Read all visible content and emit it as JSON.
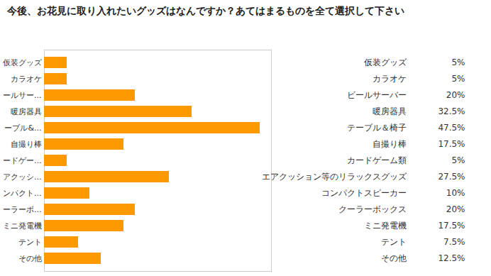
{
  "chart_data": {
    "type": "bar",
    "title": "今後、お花見に取り入れたいグッズはなんですか？あてはまるものを全て選択して下さい",
    "orientation": "horizontal",
    "categories": [
      "仮装グッズ",
      "カラオケ",
      "ビールサーバー",
      "暖房器具",
      "テーブル＆椅子",
      "自撮り棒",
      "カードゲーム類",
      "エアクッション等のリラックスグッズ",
      "コンパクトスピーカー",
      "クーラーボックス",
      "ミニ発電機",
      "テント",
      "その他"
    ],
    "y_tick_labels": [
      "仮装グッズ",
      "カラオケ",
      "ールサー...",
      "暖房器具",
      "ーブル&...",
      "自撮り棒",
      "ードゲー...",
      "アクッシ...",
      "ンパクト...",
      "ーラーボ...",
      "ミニ発電機",
      "テント",
      "その他"
    ],
    "values": [
      5,
      5,
      20,
      32.5,
      47.5,
      17.5,
      5,
      27.5,
      10,
      20,
      17.5,
      7.5,
      12.5
    ],
    "value_labels": [
      "5%",
      "5%",
      "20%",
      "32.5%",
      "47.5%",
      "17.5%",
      "5%",
      "27.5%",
      "10%",
      "20%",
      "17.5%",
      "7.5%",
      "12.5%"
    ],
    "data_labels": true,
    "color": "#ff9900",
    "xlim": [
      0,
      50
    ],
    "xticks": [],
    "tick_labels": "y",
    "grid": false
  }
}
